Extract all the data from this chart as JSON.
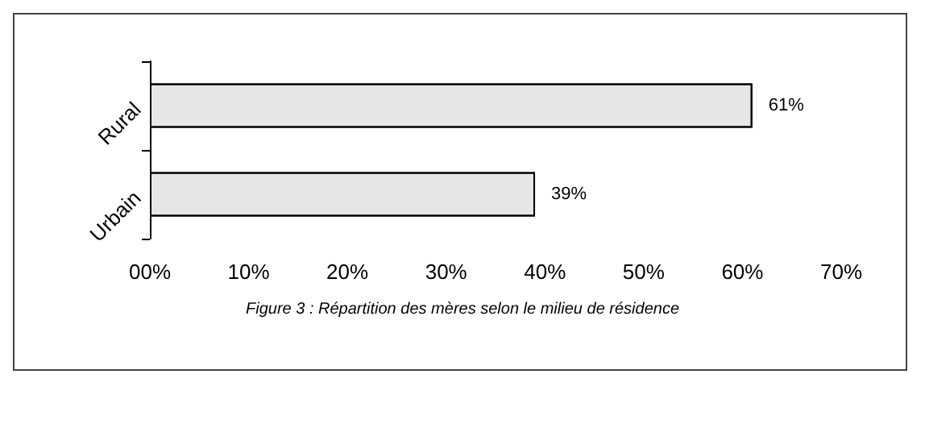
{
  "chart_data": {
    "type": "bar",
    "orientation": "horizontal",
    "categories": [
      "Rural",
      "Urbain"
    ],
    "values": [
      61,
      39
    ],
    "value_labels": [
      "61%",
      "39%"
    ],
    "color": "#e6e6e6",
    "xlim": [
      0,
      70
    ],
    "xticks": [
      {
        "value": 0,
        "label": "00%"
      },
      {
        "value": 10,
        "label": "10%"
      },
      {
        "value": 20,
        "label": "20%"
      },
      {
        "value": 30,
        "label": "30%"
      },
      {
        "value": 40,
        "label": "40%"
      },
      {
        "value": 50,
        "label": "50%"
      },
      {
        "value": 60,
        "label": "60%"
      },
      {
        "value": 70,
        "label": "70%"
      }
    ],
    "annotations": [
      "Figure 3 : Répartition des mères selon le milieu de résidence"
    ],
    "grid": false
  }
}
